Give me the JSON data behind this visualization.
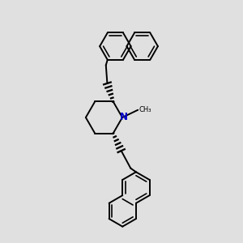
{
  "background_color": "#e0e0e0",
  "bond_color": "#000000",
  "nitrogen_color": "#0000cd",
  "lw": 1.4,
  "scale": 1.0
}
